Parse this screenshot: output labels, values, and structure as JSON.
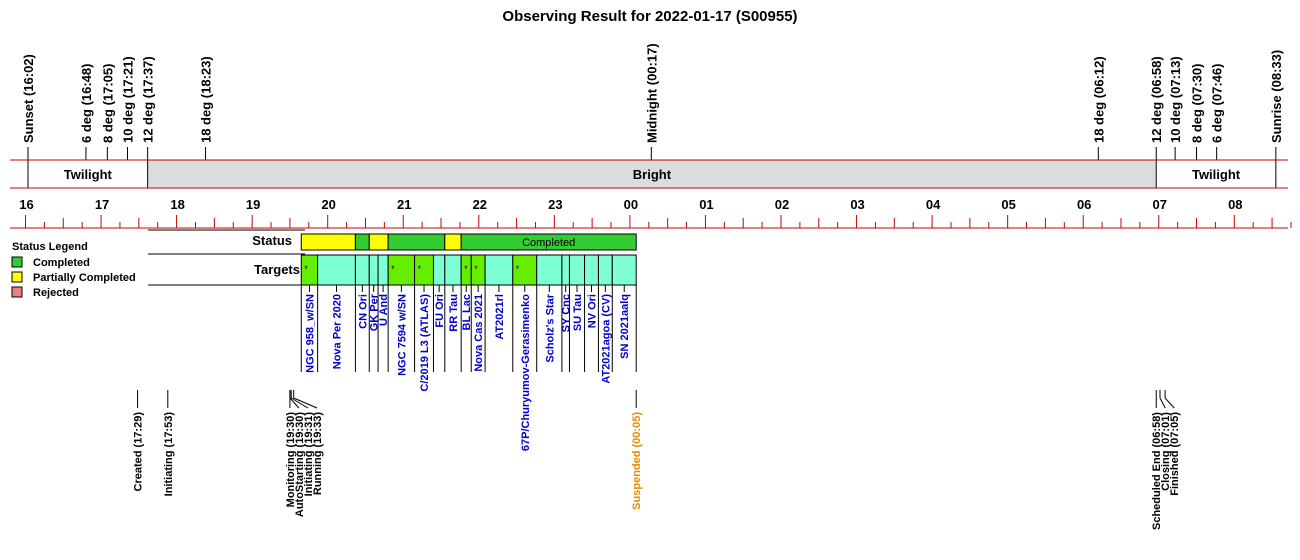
{
  "chart_data": {
    "type": "timeline",
    "title": "Observing Result for 2022-01-17 (S00955)",
    "sun_events": [
      {
        "label": "Sunset (16:02)",
        "time": "16:02"
      },
      {
        "label": "6 deg (16:48)",
        "time": "16:48"
      },
      {
        "label": "8 deg (17:05)",
        "time": "17:05"
      },
      {
        "label": "10 deg (17:21)",
        "time": "17:21"
      },
      {
        "label": "12 deg (17:37)",
        "time": "17:37"
      },
      {
        "label": "18 deg (18:23)",
        "time": "18:23"
      },
      {
        "label": "Midnight (00:17)",
        "time": "00:17"
      },
      {
        "label": "18 deg (06:12)",
        "time": "06:12"
      },
      {
        "label": "12 deg (06:58)",
        "time": "06:58"
      },
      {
        "label": "10 deg (07:13)",
        "time": "07:13"
      },
      {
        "label": "8 deg (07:30)",
        "time": "07:30"
      },
      {
        "label": "6 deg (07:46)",
        "time": "07:46"
      },
      {
        "label": "Sunrise (08:33)",
        "time": "08:33"
      }
    ],
    "sky_bands": [
      {
        "label": "Twilight",
        "start": "16:02",
        "end": "17:37",
        "shaded": false
      },
      {
        "label": "Bright",
        "start": "17:37",
        "end": "06:58",
        "shaded": true
      },
      {
        "label": "Twilight",
        "start": "06:58",
        "end": "08:33",
        "shaded": false
      }
    ],
    "hour_ticks": [
      "16",
      "17",
      "18",
      "19",
      "20",
      "21",
      "22",
      "23",
      "00",
      "01",
      "02",
      "03",
      "04",
      "05",
      "06",
      "07",
      "08"
    ],
    "status_row_label": "Status",
    "targets_row_label": "Targets",
    "status_segments": [
      {
        "start": "19:39",
        "end": "20:22",
        "status": "Partially Completed",
        "label": ""
      },
      {
        "start": "20:22",
        "end": "20:33",
        "status": "Completed",
        "label": ""
      },
      {
        "start": "20:33",
        "end": "20:48",
        "status": "Partially Completed",
        "label": ""
      },
      {
        "start": "20:48",
        "end": "21:33",
        "status": "Completed",
        "label": ""
      },
      {
        "start": "21:33",
        "end": "21:46",
        "status": "Partially Completed",
        "label": ""
      },
      {
        "start": "21:46",
        "end": "00:05",
        "status": "Completed",
        "label": "Completed"
      }
    ],
    "targets": [
      {
        "name": "NGC 958_w/SN",
        "start": "19:39",
        "end": "19:52",
        "marked": true
      },
      {
        "name": "Nova Per 2020",
        "start": "19:52",
        "end": "20:22",
        "marked": false
      },
      {
        "name": "CN Ori",
        "start": "20:22",
        "end": "20:33",
        "marked": false
      },
      {
        "name": "GK Per",
        "start": "20:33",
        "end": "20:40",
        "marked": false
      },
      {
        "name": "U And",
        "start": "20:40",
        "end": "20:48",
        "marked": false
      },
      {
        "name": "NGC 7594 w/SN",
        "start": "20:48",
        "end": "21:09",
        "marked": true
      },
      {
        "name": "C/2019 L3 (ATLAS)",
        "start": "21:09",
        "end": "21:24",
        "marked": true
      },
      {
        "name": "FU Ori",
        "start": "21:24",
        "end": "21:33",
        "marked": false
      },
      {
        "name": "RR Tau",
        "start": "21:33",
        "end": "21:46",
        "marked": false
      },
      {
        "name": "BL Lac",
        "start": "21:46",
        "end": "21:54",
        "marked": true
      },
      {
        "name": "Nova Cas 2021",
        "start": "21:54",
        "end": "22:05",
        "marked": true
      },
      {
        "name": "AT2021rl",
        "start": "22:05",
        "end": "22:27",
        "marked": false
      },
      {
        "name": "67P/Churyumov-Gerasimenko",
        "start": "22:27",
        "end": "22:46",
        "marked": true
      },
      {
        "name": "Scholz's Star",
        "start": "22:46",
        "end": "23:06",
        "marked": false
      },
      {
        "name": "SY Cnc",
        "start": "23:06",
        "end": "23:12",
        "marked": false
      },
      {
        "name": "SU Tau",
        "start": "23:12",
        "end": "23:24",
        "marked": false
      },
      {
        "name": "NV Ori",
        "start": "23:24",
        "end": "23:35",
        "marked": false
      },
      {
        "name": "AT2021agoa (CV)",
        "start": "23:35",
        "end": "23:46",
        "marked": false
      },
      {
        "name": "SN 2021aalq",
        "start": "23:46",
        "end": "00:05",
        "marked": false
      }
    ],
    "events": [
      {
        "label": "Created (17:29)",
        "time": "17:29",
        "color": "#000000"
      },
      {
        "label": "Initiating (17:53)",
        "time": "17:53",
        "color": "#000000"
      },
      {
        "label": "Monitoring (19:30)",
        "time": "19:30",
        "color": "#000000"
      },
      {
        "label": "AutoStarting (19:30)",
        "time": "19:30",
        "color": "#000000"
      },
      {
        "label": "Initiating (19:31)",
        "time": "19:31",
        "color": "#000000"
      },
      {
        "label": "Running (19:33)",
        "time": "19:33",
        "color": "#000000"
      },
      {
        "label": "Suspended (00:05)",
        "time": "00:05",
        "color": "#e88a00"
      },
      {
        "label": "Scheduled End (06:58)",
        "time": "06:58",
        "color": "#000000"
      },
      {
        "label": "Closing (07:01)",
        "time": "07:01",
        "color": "#000000"
      },
      {
        "label": "Finished (07:05)",
        "time": "07:05",
        "color": "#000000"
      }
    ],
    "legend": {
      "title": "Status Legend",
      "items": [
        {
          "label": "Completed",
          "color": "#33cc33"
        },
        {
          "label": "Partially Completed",
          "color": "#ffff00"
        },
        {
          "label": "Rejected",
          "color": "#f08080"
        }
      ]
    },
    "colors": {
      "axis_red": "#cc0000",
      "bright_fill": "#dcdcdc",
      "target_fill": "#7fffd4",
      "target_marked_fill": "#66ee00",
      "target_text": "#0000cc",
      "completed": "#33cc33",
      "partial": "#ffff00"
    }
  }
}
